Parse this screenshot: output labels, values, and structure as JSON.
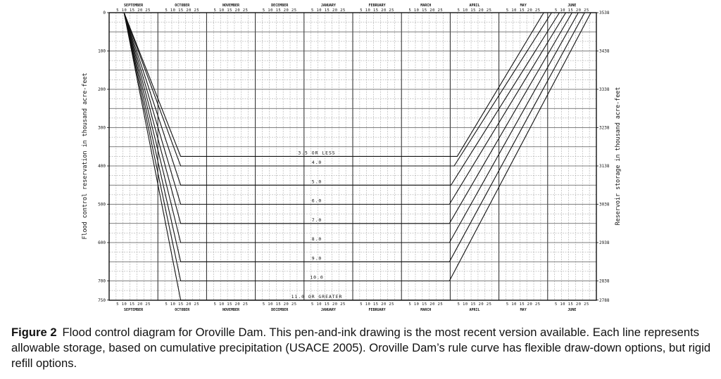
{
  "chart_data": {
    "type": "line",
    "xlabel": "",
    "ylabel_left": "Flood control reservation in thousand acre-feet",
    "ylabel_right": "Reservoir storage in thousand acre-feet",
    "months": [
      "SEPTEMBER",
      "OCTOBER",
      "NOVEMBER",
      "DECEMBER",
      "JANUARY",
      "FEBRUARY",
      "MARCH",
      "APRIL",
      "MAY",
      "JUNE"
    ],
    "day_ticks": [
      "5",
      "10",
      "15",
      "20",
      "25"
    ],
    "left_ticks": [
      "0",
      "100",
      "200",
      "300",
      "400",
      "500",
      "600",
      "700",
      "750"
    ],
    "right_ticks": [
      "3538",
      "3438",
      "3338",
      "3238",
      "3138",
      "3038",
      "2938",
      "2838",
      "2788"
    ],
    "ylim": [
      0,
      750
    ],
    "series": [
      {
        "name": "3.5 OR LESS",
        "values": [
          {
            "x": "Sep 10",
            "y": 0
          },
          {
            "x": "Oct 15",
            "y": 375
          },
          {
            "x": "Mar 31",
            "y": 375
          },
          {
            "x": "Apr 5",
            "y": 375
          },
          {
            "x": "May 29",
            "y": 0
          }
        ]
      },
      {
        "name": "4.0",
        "values": [
          {
            "x": "Sep 10",
            "y": 0
          },
          {
            "x": "Oct 15",
            "y": 400
          },
          {
            "x": "Mar 31",
            "y": 400
          },
          {
            "x": "Apr 3",
            "y": 400
          },
          {
            "x": "Jun 3",
            "y": 0
          }
        ]
      },
      {
        "name": "5.0",
        "values": [
          {
            "x": "Sep 10",
            "y": 0
          },
          {
            "x": "Oct 15",
            "y": 450
          },
          {
            "x": "Mar 31",
            "y": 450
          },
          {
            "x": "Apr 1",
            "y": 450
          },
          {
            "x": "Jun 8",
            "y": 0
          }
        ]
      },
      {
        "name": "6.0",
        "values": [
          {
            "x": "Sep 10",
            "y": 0
          },
          {
            "x": "Oct 15",
            "y": 500
          },
          {
            "x": "Mar 31",
            "y": 500
          },
          {
            "x": "Jun 12",
            "y": 0
          }
        ]
      },
      {
        "name": "7.0",
        "values": [
          {
            "x": "Sep 10",
            "y": 0
          },
          {
            "x": "Oct 15",
            "y": 550
          },
          {
            "x": "Mar 31",
            "y": 550
          },
          {
            "x": "Jun 16",
            "y": 0
          }
        ]
      },
      {
        "name": "8.0",
        "values": [
          {
            "x": "Sep 10",
            "y": 0
          },
          {
            "x": "Oct 15",
            "y": 600
          },
          {
            "x": "Mar 31",
            "y": 600
          },
          {
            "x": "Jun 20",
            "y": 0
          }
        ]
      },
      {
        "name": "9.0",
        "values": [
          {
            "x": "Sep 10",
            "y": 0
          },
          {
            "x": "Oct 15",
            "y": 650
          },
          {
            "x": "Mar 31",
            "y": 650
          },
          {
            "x": "Jun 24",
            "y": 0
          }
        ]
      },
      {
        "name": "10.0",
        "values": [
          {
            "x": "Sep 10",
            "y": 0
          },
          {
            "x": "Oct 15",
            "y": 700
          },
          {
            "x": "Mar 31",
            "y": 700
          },
          {
            "x": "Jun 28",
            "y": 0
          }
        ]
      },
      {
        "name": "11.0 OR GREATER",
        "values": [
          {
            "x": "Sep 10",
            "y": 0
          },
          {
            "x": "Oct 15",
            "y": 750
          },
          {
            "x": "Mar 31",
            "y": 750
          }
        ]
      }
    ],
    "grid": true,
    "legend": "labels on curves"
  },
  "caption": {
    "label": "Figure 2",
    "text": "Flood control diagram for Oroville Dam. This pen-and-ink drawing is the most recent version available. Each line represents allowable storage, based on cumulative precipitation (USACE 2005). Oroville Dam’s rule curve has flexible draw-down options, but rigid refill options."
  }
}
